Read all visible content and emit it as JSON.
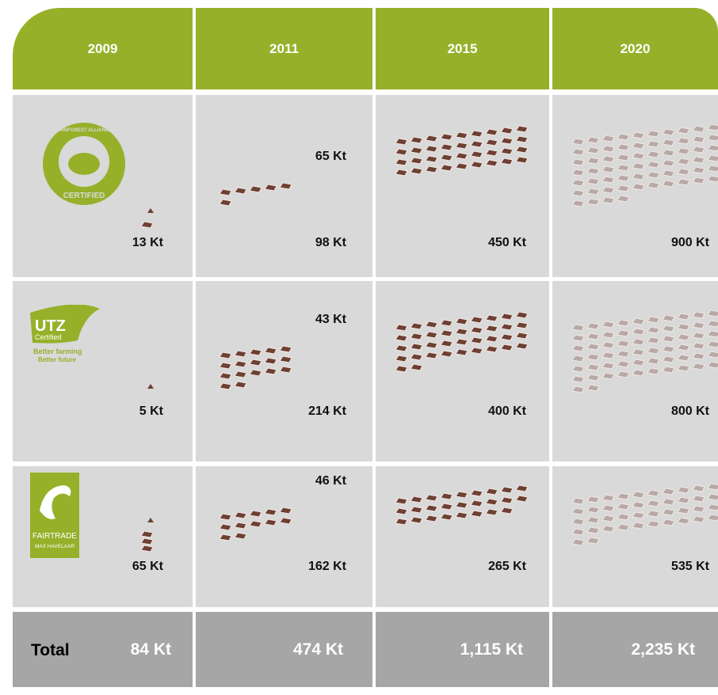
{
  "header": {
    "columns": [
      "2009",
      "2011",
      "2015",
      "2020"
    ]
  },
  "logos": {
    "rainforest": [
      "RAINFOREST ALLIANCE",
      "CERTIFIED"
    ],
    "utz": [
      "UTZ",
      "Certified",
      "Better farming",
      "Better future"
    ],
    "fairtrade": [
      "FAIRTRADE",
      "MAX HAVELAAR"
    ]
  },
  "rows": [
    {
      "cells": [
        {
          "bottom": "13 Kt"
        },
        {
          "top": "65 Kt",
          "bottom": "98 Kt"
        },
        {
          "bottom": "450 Kt"
        },
        {
          "bottom": "900 Kt"
        }
      ]
    },
    {
      "cells": [
        {
          "bottom": "5 Kt"
        },
        {
          "top": "43 Kt",
          "bottom": "214 Kt"
        },
        {
          "bottom": "400 Kt"
        },
        {
          "bottom": "800 Kt"
        }
      ]
    },
    {
      "cells": [
        {
          "bottom": "65 Kt"
        },
        {
          "top": "46 Kt",
          "bottom": "162 Kt"
        },
        {
          "bottom": "265 Kt"
        },
        {
          "bottom": "535 Kt"
        }
      ]
    }
  ],
  "total": {
    "label": "Total",
    "values": [
      "84 Kt",
      "474 Kt",
      "1,115 Kt",
      "2,235 Kt"
    ]
  }
}
